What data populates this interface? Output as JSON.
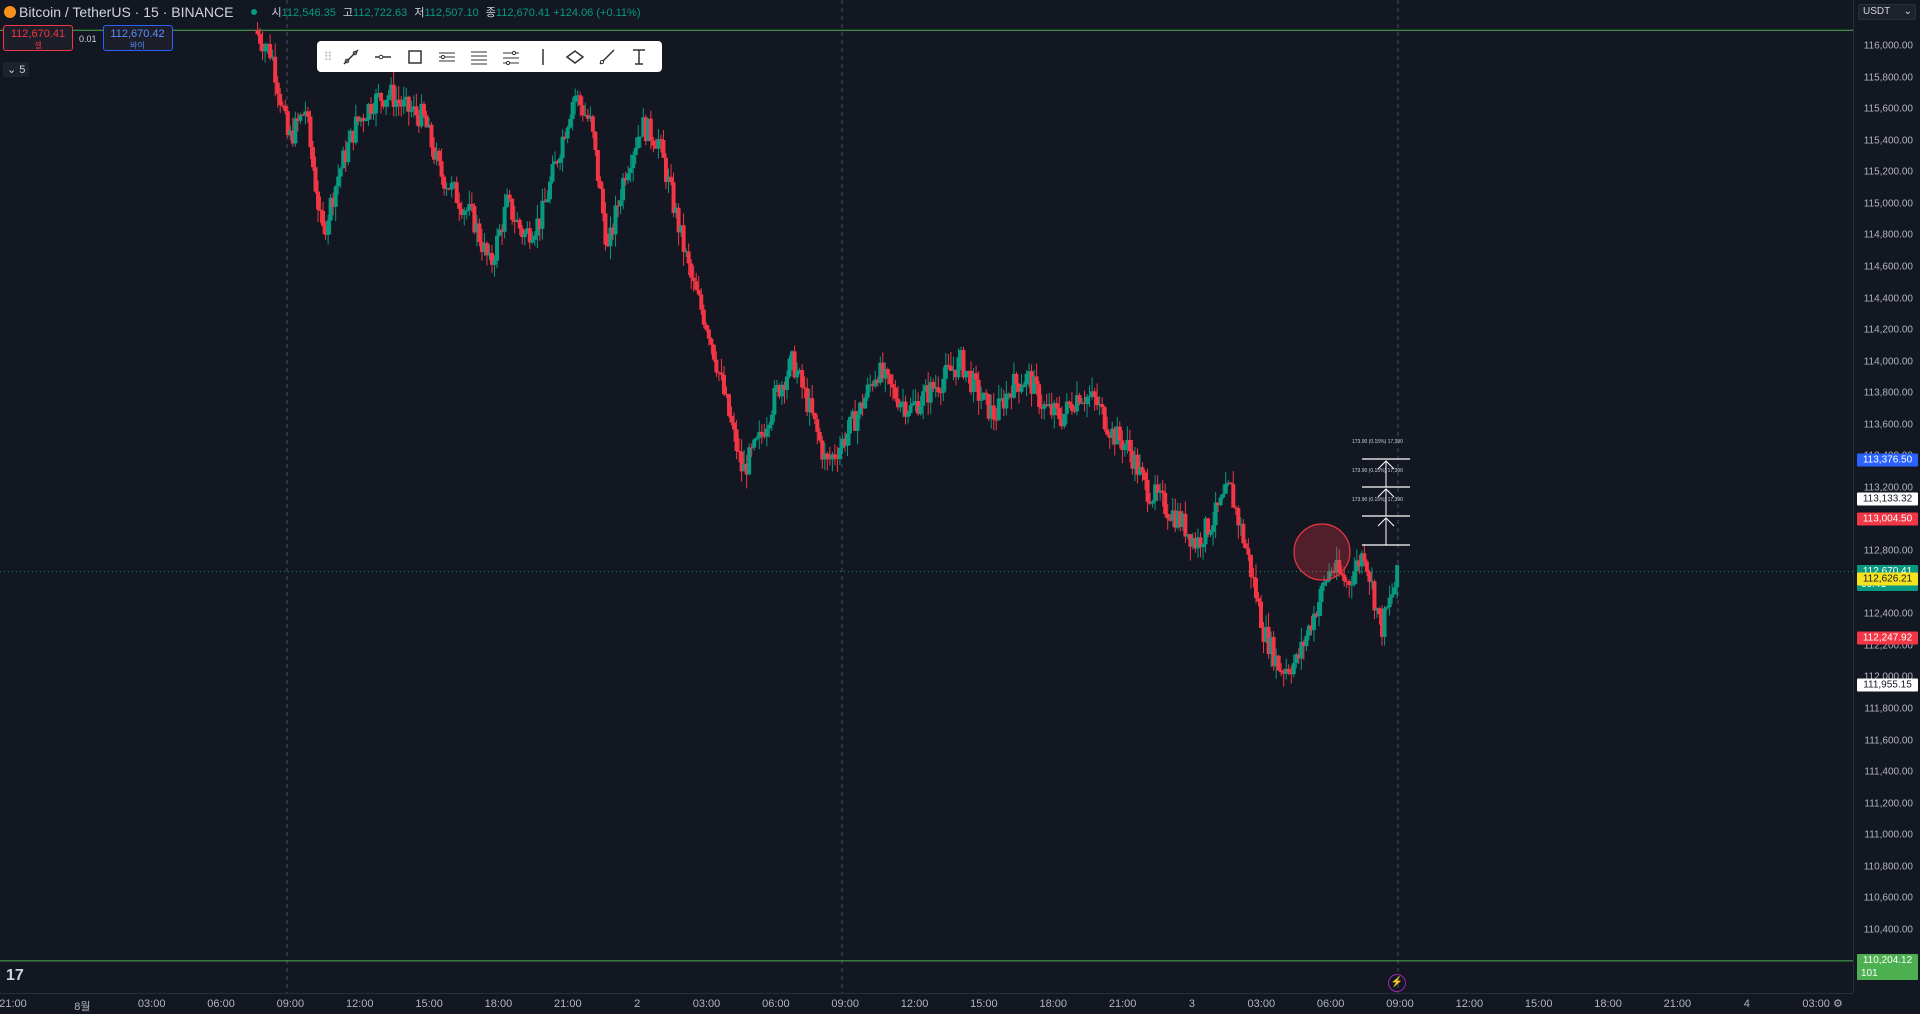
{
  "symbol": {
    "title": "Bitcoin / TetherUS · 15 · BINANCE",
    "ohlc": [
      {
        "k": "시",
        "v": "112,546.35"
      },
      {
        "k": "고",
        "v": "112,722.63"
      },
      {
        "k": "저",
        "v": "112,507.10"
      },
      {
        "k": "종",
        "v": "112,670.41"
      }
    ],
    "change": "+124.06 (+0.11%)"
  },
  "order_panel": {
    "sell_price": "112,670.41",
    "sell_label": "셀",
    "spread": "0.01",
    "buy_price": "112,670.42",
    "buy_label": "바이",
    "collapse_label": "5"
  },
  "drawing_toolbar": {
    "handle_icon": "drag-handle-icon",
    "tools": [
      "trend-line-icon",
      "horizontal-ray-icon",
      "rectangle-icon",
      "parallel-channel-icon",
      "fib-retracement-icon",
      "pitchfork-icon",
      "vertical-line-icon",
      "ellipse-icon",
      "ray-icon",
      "text-cursor-icon"
    ]
  },
  "price_axis": {
    "currency": "USDT",
    "ticks": [
      "116,000.00",
      "115,800.00",
      "115,600.00",
      "115,400.00",
      "115,200.00",
      "115,000.00",
      "114,800.00",
      "114,600.00",
      "114,400.00",
      "114,200.00",
      "114,000.00",
      "113,800.00",
      "113,600.00",
      "113,400.00",
      "113,200.00",
      "112,800.00",
      "112,400.00",
      "112,200.00",
      "112,000.00",
      "111,800.00",
      "111,600.00",
      "111,400.00",
      "111,200.00",
      "111,000.00",
      "110,800.00",
      "110,600.00",
      "110,400.00"
    ],
    "labels": [
      {
        "text": "113,376.50",
        "color": "#2962ff"
      },
      {
        "text": "113,133.32",
        "color": "#ffffff"
      },
      {
        "text": "113,004.50",
        "color": "#f23645"
      },
      {
        "text": "112,670.41",
        "sub": "00:41",
        "color": "#089981"
      },
      {
        "text": "112,626.21",
        "color": "#f5e31f"
      },
      {
        "text": "112,247.92",
        "color": "#f23645"
      },
      {
        "text": "111,955.15",
        "color": "#ffffff"
      },
      {
        "text": "110,204.12",
        "sub": "101",
        "color": "#4caf50"
      }
    ]
  },
  "time_axis": {
    "labels": [
      "21:00",
      "8월",
      "03:00",
      "06:00",
      "09:00",
      "12:00",
      "15:00",
      "18:00",
      "21:00",
      "2",
      "03:00",
      "06:00",
      "09:00",
      "12:00",
      "15:00",
      "18:00",
      "21:00",
      "3",
      "03:00",
      "06:00",
      "09:00",
      "12:00",
      "15:00",
      "18:00",
      "21:00",
      "4",
      "03:00"
    ]
  },
  "annotation": {
    "lines": [
      "173.90 (0.15%) 17,390",
      "173.90 (0.15%) 17,390",
      "173.90 (0.15%) 17,390"
    ]
  },
  "chart_data": {
    "type": "candlestick",
    "symbol": "BTCUSDT",
    "interval": "15",
    "ylim": [
      110200,
      116200
    ],
    "last_price": 112670.41,
    "horizontal_levels": [
      116100,
      110204.12
    ],
    "price_path": [
      [
        0,
        116100
      ],
      [
        4,
        115950
      ],
      [
        8,
        115400
      ],
      [
        12,
        115600
      ],
      [
        16,
        114800
      ],
      [
        20,
        115200
      ],
      [
        24,
        115500
      ],
      [
        28,
        115650
      ],
      [
        32,
        115700
      ],
      [
        36,
        115600
      ],
      [
        40,
        115550
      ],
      [
        44,
        115200
      ],
      [
        48,
        115050
      ],
      [
        52,
        114900
      ],
      [
        56,
        114600
      ],
      [
        60,
        115000
      ],
      [
        64,
        114800
      ],
      [
        68,
        114900
      ],
      [
        72,
        115300
      ],
      [
        76,
        115700
      ],
      [
        80,
        115500
      ],
      [
        84,
        114700
      ],
      [
        88,
        115200
      ],
      [
        92,
        115500
      ],
      [
        96,
        115400
      ],
      [
        100,
        114950
      ],
      [
        104,
        114500
      ],
      [
        108,
        114200
      ],
      [
        112,
        113750
      ],
      [
        116,
        113300
      ],
      [
        120,
        113500
      ],
      [
        124,
        113800
      ],
      [
        128,
        114000
      ],
      [
        132,
        113700
      ],
      [
        136,
        113350
      ],
      [
        140,
        113500
      ],
      [
        144,
        113700
      ],
      [
        148,
        113950
      ],
      [
        152,
        113800
      ],
      [
        156,
        113700
      ],
      [
        160,
        113800
      ],
      [
        164,
        113900
      ],
      [
        168,
        114000
      ],
      [
        172,
        113800
      ],
      [
        176,
        113650
      ],
      [
        180,
        113850
      ],
      [
        184,
        113900
      ],
      [
        188,
        113700
      ],
      [
        192,
        113650
      ],
      [
        196,
        113800
      ],
      [
        200,
        113750
      ],
      [
        204,
        113550
      ],
      [
        208,
        113450
      ],
      [
        212,
        113200
      ],
      [
        216,
        113100
      ],
      [
        220,
        113000
      ],
      [
        224,
        112850
      ],
      [
        228,
        113000
      ],
      [
        232,
        113200
      ],
      [
        236,
        112800
      ],
      [
        240,
        112300
      ],
      [
        244,
        112050
      ],
      [
        248,
        112100
      ],
      [
        252,
        112400
      ],
      [
        256,
        112700
      ],
      [
        260,
        112600
      ],
      [
        264,
        112800
      ],
      [
        268,
        112300
      ],
      [
        272,
        112650
      ]
    ],
    "time_markers": [
      "09:00 (Aug 1)",
      "09:00 (Aug 2)",
      "09:00 (Aug 3)"
    ]
  }
}
